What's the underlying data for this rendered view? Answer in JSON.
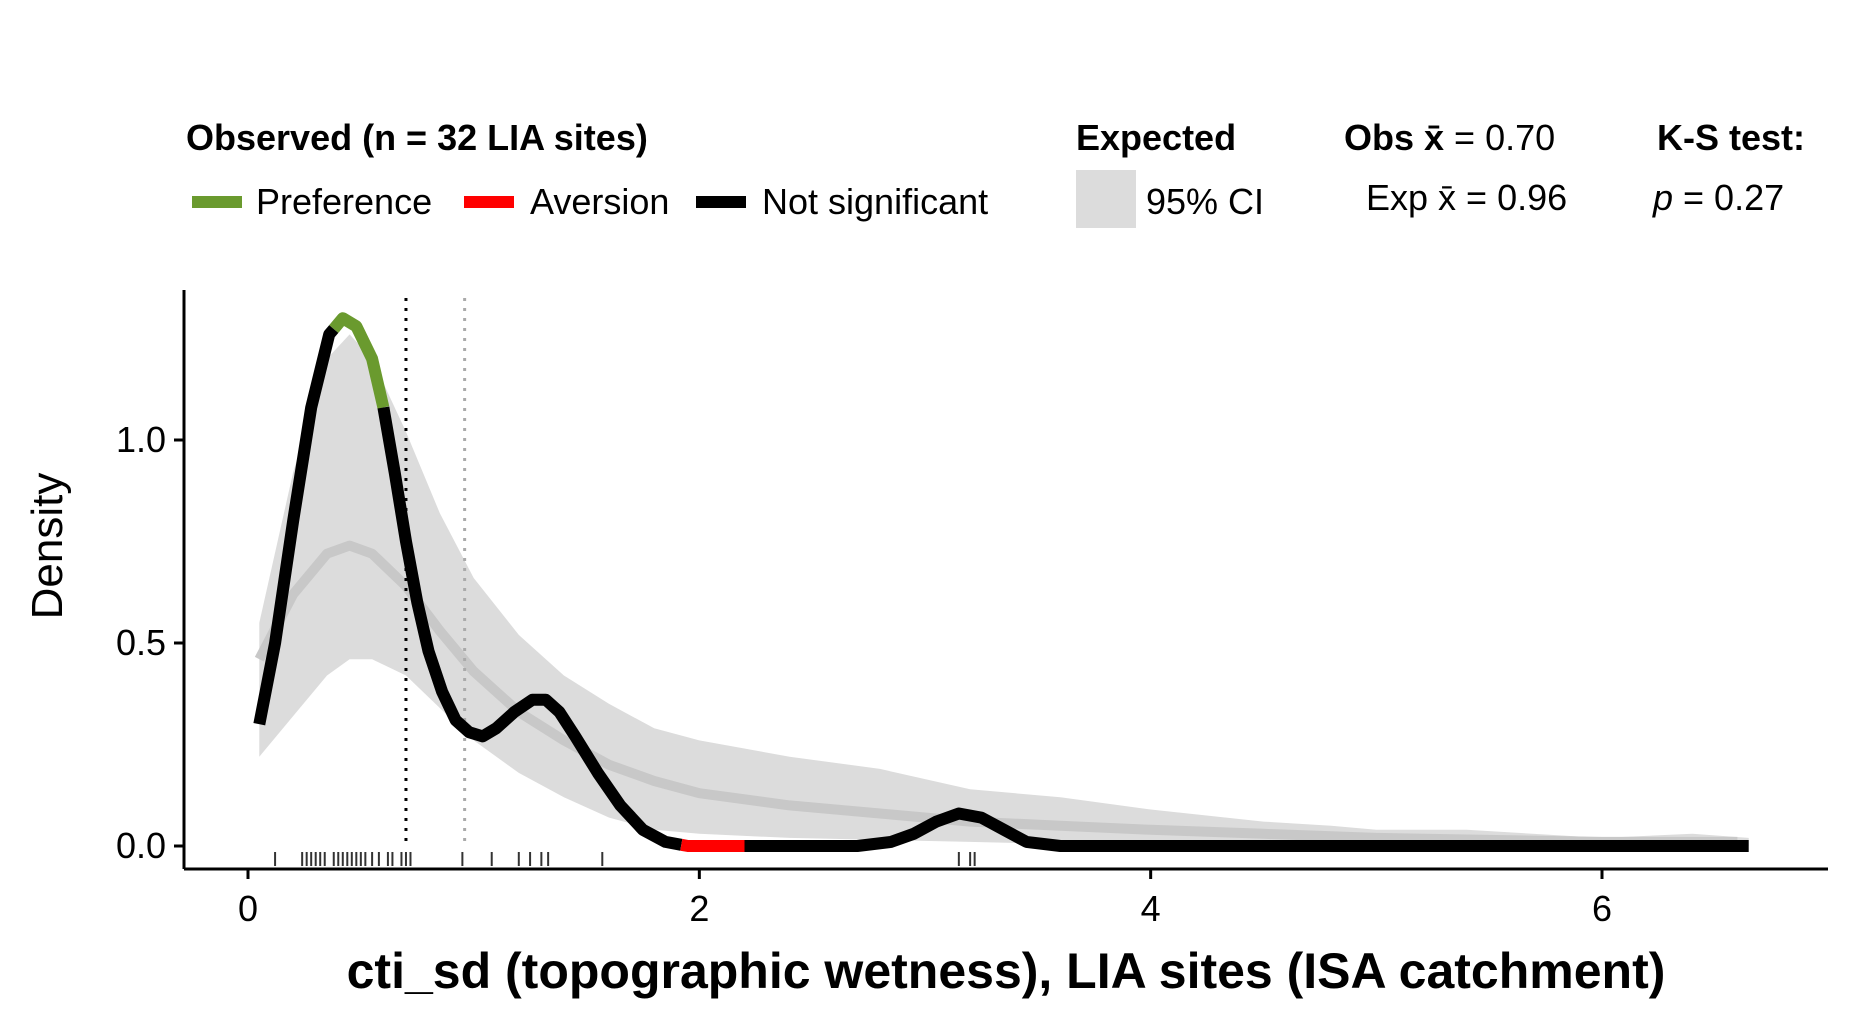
{
  "legend": {
    "observed_title": "Observed (n = 32 LIA sites)",
    "preference_label": "Preference",
    "aversion_label": "Aversion",
    "not_significant_label": "Not significant",
    "expected_title": "Expected",
    "ci_label": "95% CI",
    "obs_mean_label": "Obs x̄",
    "obs_mean_value": " = 0.70",
    "exp_mean_label": "Exp x̄",
    "exp_mean_value": " = 0.96",
    "ks_title": "K-S test:",
    "ks_p_label": "p",
    "ks_p_value": " = 0.27"
  },
  "colors": {
    "preference": "#6a9a2e",
    "aversion": "#ff0000",
    "not_significant": "#000000",
    "ci_band": "#dcdcdc",
    "expected_line": "#c8c8c8",
    "obs_mean_line": "#000000",
    "exp_mean_line": "#aaaaaa"
  },
  "chart_data": {
    "type": "line",
    "xlabel": "cti_sd (topographic wetness), LIA sites (ISA catchment)",
    "ylabel": "Density",
    "xlim": [
      -0.3,
      7.0
    ],
    "ylim": [
      -0.05,
      1.37
    ],
    "x_ticks": [
      0,
      2,
      4,
      6
    ],
    "y_ticks": [
      0.0,
      0.5,
      1.0
    ],
    "y_tick_labels": [
      "0.0",
      "0.5",
      "1.0"
    ],
    "observed_mean": 0.7,
    "expected_mean": 0.96,
    "observed": [
      [
        0.05,
        0.3
      ],
      [
        0.12,
        0.5
      ],
      [
        0.2,
        0.8
      ],
      [
        0.28,
        1.08
      ],
      [
        0.36,
        1.26
      ],
      [
        0.42,
        1.3
      ],
      [
        0.48,
        1.28
      ],
      [
        0.55,
        1.2
      ],
      [
        0.6,
        1.08
      ],
      [
        0.65,
        0.92
      ],
      [
        0.7,
        0.75
      ],
      [
        0.75,
        0.6
      ],
      [
        0.8,
        0.48
      ],
      [
        0.86,
        0.38
      ],
      [
        0.92,
        0.31
      ],
      [
        0.98,
        0.28
      ],
      [
        1.04,
        0.27
      ],
      [
        1.1,
        0.29
      ],
      [
        1.18,
        0.33
      ],
      [
        1.26,
        0.36
      ],
      [
        1.32,
        0.36
      ],
      [
        1.38,
        0.33
      ],
      [
        1.45,
        0.27
      ],
      [
        1.55,
        0.18
      ],
      [
        1.65,
        0.1
      ],
      [
        1.75,
        0.04
      ],
      [
        1.85,
        0.01
      ],
      [
        1.95,
        0.0
      ],
      [
        2.2,
        0.0
      ],
      [
        2.7,
        0.0
      ],
      [
        2.85,
        0.01
      ],
      [
        2.95,
        0.03
      ],
      [
        3.05,
        0.06
      ],
      [
        3.15,
        0.08
      ],
      [
        3.25,
        0.07
      ],
      [
        3.35,
        0.04
      ],
      [
        3.45,
        0.01
      ],
      [
        3.6,
        0.0
      ],
      [
        4.5,
        0.0
      ],
      [
        5.5,
        0.0
      ],
      [
        6.65,
        0.0
      ]
    ],
    "preference_range": [
      0.38,
      0.6
    ],
    "aversion_range": [
      1.92,
      2.2
    ],
    "expected_mean_curve": [
      [
        0.05,
        0.46
      ],
      [
        0.2,
        0.62
      ],
      [
        0.35,
        0.72
      ],
      [
        0.45,
        0.74
      ],
      [
        0.55,
        0.72
      ],
      [
        0.7,
        0.64
      ],
      [
        0.85,
        0.53
      ],
      [
        1.0,
        0.43
      ],
      [
        1.2,
        0.33
      ],
      [
        1.4,
        0.26
      ],
      [
        1.6,
        0.2
      ],
      [
        1.8,
        0.16
      ],
      [
        2.0,
        0.13
      ],
      [
        2.4,
        0.1
      ],
      [
        2.8,
        0.08
      ],
      [
        3.2,
        0.06
      ],
      [
        3.6,
        0.05
      ],
      [
        4.0,
        0.04
      ],
      [
        4.5,
        0.03
      ],
      [
        5.0,
        0.02
      ],
      [
        5.5,
        0.015
      ],
      [
        6.0,
        0.01
      ],
      [
        6.6,
        0.01
      ]
    ],
    "ci_upper": [
      [
        0.05,
        0.55
      ],
      [
        0.2,
        0.92
      ],
      [
        0.35,
        1.2
      ],
      [
        0.45,
        1.26
      ],
      [
        0.55,
        1.2
      ],
      [
        0.7,
        1.02
      ],
      [
        0.85,
        0.82
      ],
      [
        1.0,
        0.66
      ],
      [
        1.2,
        0.52
      ],
      [
        1.4,
        0.42
      ],
      [
        1.6,
        0.35
      ],
      [
        1.8,
        0.29
      ],
      [
        2.0,
        0.26
      ],
      [
        2.4,
        0.22
      ],
      [
        2.8,
        0.19
      ],
      [
        3.2,
        0.14
      ],
      [
        3.6,
        0.12
      ],
      [
        4.0,
        0.09
      ],
      [
        4.5,
        0.06
      ],
      [
        4.8,
        0.05
      ],
      [
        5.0,
        0.04
      ],
      [
        5.4,
        0.04
      ],
      [
        6.0,
        0.02
      ],
      [
        6.4,
        0.03
      ],
      [
        6.65,
        0.02
      ]
    ],
    "ci_lower": [
      [
        0.05,
        0.22
      ],
      [
        0.2,
        0.32
      ],
      [
        0.35,
        0.42
      ],
      [
        0.45,
        0.46
      ],
      [
        0.55,
        0.46
      ],
      [
        0.7,
        0.42
      ],
      [
        0.85,
        0.34
      ],
      [
        1.0,
        0.26
      ],
      [
        1.2,
        0.18
      ],
      [
        1.4,
        0.12
      ],
      [
        1.6,
        0.07
      ],
      [
        1.8,
        0.04
      ],
      [
        2.0,
        0.03
      ],
      [
        2.4,
        0.02
      ],
      [
        2.8,
        0.015
      ],
      [
        3.2,
        0.01
      ],
      [
        3.6,
        0.005
      ],
      [
        4.0,
        0.003
      ],
      [
        5.0,
        0.0
      ],
      [
        6.65,
        0.0
      ]
    ],
    "rug": [
      0.12,
      0.24,
      0.26,
      0.28,
      0.3,
      0.32,
      0.34,
      0.38,
      0.4,
      0.42,
      0.44,
      0.46,
      0.48,
      0.5,
      0.52,
      0.55,
      0.58,
      0.62,
      0.64,
      0.68,
      0.7,
      0.72,
      0.95,
      1.08,
      1.2,
      1.25,
      1.3,
      1.33,
      1.57,
      3.15,
      3.2,
      3.22
    ]
  }
}
